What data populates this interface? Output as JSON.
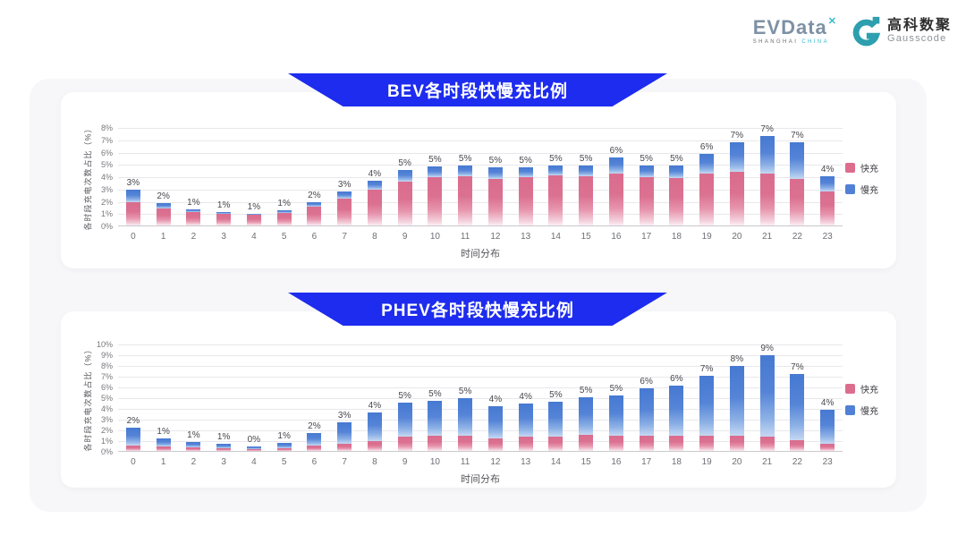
{
  "header": {
    "evdata": {
      "text": "EVData",
      "x_mark": "✕",
      "subtext_left": "SHANGHAI ",
      "subtext_right": "CHINA"
    },
    "gausscode": {
      "cn": "高科数聚",
      "en": "Gausscode"
    }
  },
  "colors": {
    "banner_blue": "#1d2cee",
    "fast_pink": "#dd6d8c",
    "slow_blue": "#5181d6",
    "logo_teal": "#2d9fae"
  },
  "chart_data": [
    {
      "type": "bar",
      "stacked": true,
      "title": "BEV各时段快慢充比例",
      "xlabel": "时间分布",
      "ylabel": "各时段充电次数占比（%）",
      "ylim": [
        0,
        8
      ],
      "ytick_step": 1,
      "grid": true,
      "legend_position": "right",
      "categories": [
        "0",
        "1",
        "2",
        "3",
        "4",
        "5",
        "6",
        "7",
        "8",
        "9",
        "10",
        "11",
        "12",
        "13",
        "14",
        "15",
        "16",
        "17",
        "18",
        "19",
        "20",
        "21",
        "22",
        "23"
      ],
      "series": [
        {
          "name": "快充",
          "key": "fast",
          "color": "#dd6d8c",
          "values": [
            1.9,
            1.35,
            1.1,
            0.95,
            0.85,
            1.0,
            1.5,
            2.2,
            2.9,
            3.6,
            3.9,
            4.0,
            3.8,
            3.9,
            4.1,
            4.0,
            4.2,
            3.9,
            3.85,
            4.2,
            4.4,
            4.2,
            3.8,
            2.8
          ]
        },
        {
          "name": "慢充",
          "key": "slow",
          "color": "#5181d6",
          "values": [
            1.0,
            0.45,
            0.2,
            0.15,
            0.1,
            0.25,
            0.4,
            0.6,
            0.75,
            0.9,
            0.9,
            0.9,
            0.9,
            0.85,
            0.8,
            0.85,
            1.3,
            1.0,
            1.0,
            1.6,
            2.4,
            3.1,
            3.0,
            1.2
          ]
        }
      ],
      "bar_labels": [
        "3%",
        "2%",
        "1%",
        "1%",
        "1%",
        "1%",
        "2%",
        "3%",
        "4%",
        "5%",
        "5%",
        "5%",
        "5%",
        "5%",
        "5%",
        "5%",
        "6%",
        "5%",
        "5%",
        "6%",
        "7%",
        "7%",
        "7%",
        "4%"
      ]
    },
    {
      "type": "bar",
      "stacked": true,
      "title": "PHEV各时段快慢充比例",
      "xlabel": "时间分布",
      "ylabel": "各时段充电次数占比（%）",
      "ylim": [
        0,
        10
      ],
      "ytick_step": 1,
      "grid": true,
      "legend_position": "right",
      "categories": [
        "0",
        "1",
        "2",
        "3",
        "4",
        "5",
        "6",
        "7",
        "8",
        "9",
        "10",
        "11",
        "12",
        "13",
        "14",
        "15",
        "16",
        "17",
        "18",
        "19",
        "20",
        "21",
        "22",
        "23"
      ],
      "series": [
        {
          "name": "快充",
          "key": "fast",
          "color": "#dd6d8c",
          "values": [
            0.5,
            0.4,
            0.3,
            0.25,
            0.2,
            0.25,
            0.5,
            0.7,
            0.9,
            1.3,
            1.4,
            1.4,
            1.2,
            1.3,
            1.3,
            1.5,
            1.4,
            1.4,
            1.4,
            1.4,
            1.4,
            1.3,
            1.0,
            0.7
          ]
        },
        {
          "name": "慢充",
          "key": "slow",
          "color": "#5181d6",
          "values": [
            1.7,
            0.8,
            0.5,
            0.4,
            0.25,
            0.5,
            1.2,
            2.0,
            2.7,
            3.2,
            3.3,
            3.5,
            3.0,
            3.1,
            3.3,
            3.5,
            3.8,
            4.4,
            4.7,
            5.6,
            6.5,
            7.6,
            6.2,
            3.1
          ]
        }
      ],
      "bar_labels": [
        "2%",
        "1%",
        "1%",
        "1%",
        "0%",
        "1%",
        "2%",
        "3%",
        "4%",
        "5%",
        "5%",
        "5%",
        "4%",
        "4%",
        "5%",
        "5%",
        "5%",
        "6%",
        "6%",
        "7%",
        "8%",
        "9%",
        "7%",
        "4%"
      ]
    }
  ]
}
